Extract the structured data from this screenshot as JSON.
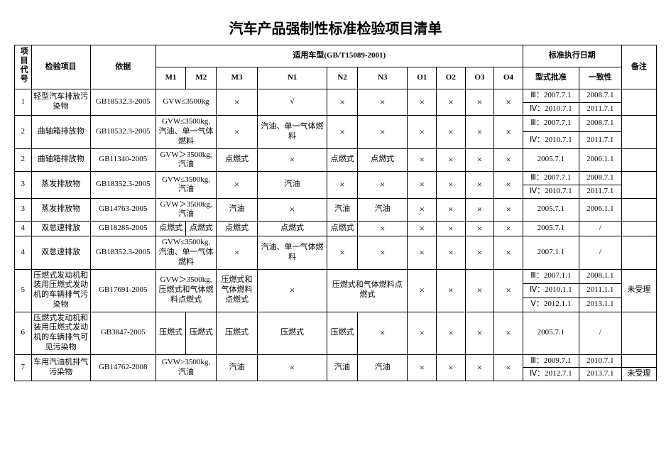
{
  "title": "汽车产品强制性标准检验项目清单",
  "headers": {
    "idx": "项目代号",
    "item": "检验项目",
    "basis": "依据",
    "vehicle_group": "适用车型(GB/T15089-2001)",
    "date_group": "标准执行日期",
    "note": "备注",
    "cols": {
      "M1": "M1",
      "M2": "M2",
      "M3": "M3",
      "N1": "N1",
      "N2": "N2",
      "N3": "N3",
      "O1": "O1",
      "O2": "O2",
      "O3": "O3",
      "O4": "O4",
      "d1": "型式批准",
      "d2": "一致性"
    }
  },
  "marks": {
    "x": "×",
    "check": "√",
    "slash": "/"
  },
  "rows": [
    {
      "idx": "1",
      "item": "轻型汽车排放污染物",
      "basis": "GB18532.3-2005",
      "m1m2": "GVW≤3500kg",
      "m3": "×",
      "n1": "√",
      "n2": "×",
      "n3": "×",
      "o1": "×",
      "o2": "×",
      "o3": "×",
      "o4": "×",
      "dates": [
        [
          "Ⅲ：2007.7.1",
          "2008.7.1"
        ],
        [
          "Ⅳ：2010.7.1",
          "2011.7.1"
        ]
      ],
      "note": ""
    },
    {
      "idx": "2",
      "item": "曲轴箱排放物",
      "basis": "GB18532.3-2005",
      "m1m2": "GVW≤3500kg,\n汽油、单一气体燃料",
      "m3": "×",
      "n1": "汽油、单一气体燃料",
      "n2": "×",
      "n3": "×",
      "o1": "×",
      "o2": "×",
      "o3": "×",
      "o4": "×",
      "dates": [
        [
          "Ⅲ：2007.7.1",
          "2008.7.1"
        ],
        [
          "Ⅳ：2010.7.1",
          "2011.7.1"
        ]
      ],
      "note": ""
    },
    {
      "idx": "2",
      "item": "曲轴箱排放物",
      "basis": "GB11340-2005",
      "m1m2": "GVW＞3500kg,\n汽油",
      "m3": "点燃式",
      "n1": "×",
      "n2": "点燃式",
      "n3": "点燃式",
      "o1": "×",
      "o2": "×",
      "o3": "×",
      "o4": "×",
      "dates": [
        [
          "2005.7.1",
          "2006.1.1"
        ]
      ],
      "note": ""
    },
    {
      "idx": "3",
      "item": "蒸发排放物",
      "basis": "GB18352.3-2005",
      "m1m2": "GVW≤3500kg,\n汽油",
      "m3": "×",
      "n1": "汽油",
      "n2": "×",
      "n3": "×",
      "o1": "×",
      "o2": "×",
      "o3": "×",
      "o4": "×",
      "dates": [
        [
          "Ⅲ：2007.7.1",
          "2008.7.1"
        ],
        [
          "Ⅳ：2010.7.1",
          "2011.7.1"
        ]
      ],
      "note": ""
    },
    {
      "idx": "3",
      "item": "蒸发排放物",
      "basis": "GB14763-2005",
      "m1m2": "GVW＞3500kg,\n汽油",
      "m3": "汽油",
      "n1": "×",
      "n2": "汽油",
      "n3": "汽油",
      "o1": "×",
      "o2": "×",
      "o3": "×",
      "o4": "×",
      "dates": [
        [
          "2005.7.1",
          "2006.1.1"
        ]
      ],
      "note": ""
    },
    {
      "idx": "4",
      "item": "双怠速排放",
      "basis": "GB18285-2005",
      "m1": "点燃式",
      "m2": "点燃式",
      "m3": "点燃式",
      "n1": "点燃式",
      "n2": "点燃式",
      "n3": "×",
      "o1": "×",
      "o2": "×",
      "o3": "×",
      "o4": "×",
      "dates": [
        [
          "2005.7.1",
          "/"
        ]
      ],
      "note": ""
    },
    {
      "idx": "4",
      "item": "双怠速排放",
      "basis": "GB18352.3-2005",
      "m1m2": "GVW≤3500kg,\n汽油、单一气体燃料",
      "m3": "×",
      "n1": "汽油、单一气体燃料",
      "n2": "×",
      "n3": "×",
      "o1": "×",
      "o2": "×",
      "o3": "×",
      "o4": "×",
      "dates": [
        [
          "2007.1.1",
          "/"
        ]
      ],
      "note": ""
    },
    {
      "idx": "5",
      "item": "压燃式发动机和装用压燃式发动机的车辆排气污染物",
      "basis": "GB17691-2005",
      "m1m2": "GVW＞3500kg,\n压燃式和气体燃料点燃式",
      "m3": "压燃式和气体燃料点燃式",
      "n1": "×",
      "n2": "压燃式和气体燃料点燃式",
      "n3_span": true,
      "o1": "×",
      "o2": "×",
      "o3": "×",
      "o4": "×",
      "dates": [
        [
          "Ⅲ：2007.1.1",
          "2008.1.1"
        ],
        [
          "Ⅳ：2010.1.1",
          "2011.1.1"
        ],
        [
          "Ⅴ：2012.1.1",
          "2013.1.1"
        ]
      ],
      "note": "未受理"
    },
    {
      "idx": "6",
      "item": "压燃式发动机和装用压燃式发动机的车辆排气可见污染物",
      "basis": "GB3847-2005",
      "m1": "压燃式",
      "m2": "压燃式",
      "m3": "压燃式",
      "n1": "压燃式",
      "n2": "压燃式",
      "n3": "×",
      "o1": "×",
      "o2": "×",
      "o3": "×",
      "o4": "×",
      "dates": [
        [
          "2005.7.1",
          "/"
        ]
      ],
      "note": ""
    },
    {
      "idx": "7",
      "item": "车用汽油机排气污染物",
      "basis": "GB14762-2008",
      "m1m2": "GVW>3500kg,\n汽油",
      "m3": "汽油",
      "n1": "×",
      "n2": "汽油",
      "n3": "汽油",
      "o1": "×",
      "o2": "×",
      "o3": "×",
      "o4": "×",
      "dates": [
        [
          "Ⅲ：2009.7.1",
          "2010.7.1"
        ],
        [
          "Ⅳ：2012.7.1",
          "2013.7.1"
        ]
      ],
      "note2": "未受理"
    }
  ]
}
